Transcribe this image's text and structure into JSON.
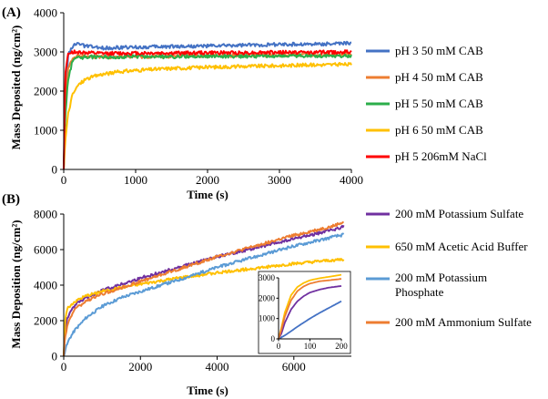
{
  "chart_data": [
    {
      "type": "line",
      "panel_label": "(A)",
      "xlabel": "Time (s)",
      "ylabel": "Mass Deposited (ng/cm²)",
      "xlim": [
        0,
        4000
      ],
      "ylim": [
        0,
        4000
      ],
      "xticks": [
        0,
        1000,
        2000,
        3000,
        4000
      ],
      "yticks": [
        0,
        1000,
        2000,
        3000,
        4000
      ],
      "xtick_labels": [
        "0",
        "1000",
        "2000",
        "3000",
        "4000"
      ],
      "ytick_labels": [
        "0",
        "1000",
        "2000",
        "3000",
        "4000"
      ],
      "series": [
        {
          "name": "pH 3 50 mM CAB",
          "color": "#4472C4",
          "x": [
            0,
            20,
            60,
            120,
            200,
            300,
            500,
            1000,
            1500,
            2000,
            2500,
            3000,
            3500,
            4000
          ],
          "y": [
            0,
            1800,
            2900,
            3150,
            3200,
            3150,
            3100,
            3120,
            3140,
            3150,
            3170,
            3190,
            3200,
            3220
          ]
        },
        {
          "name": "pH 4 50 mM CAB",
          "color": "#ED7D31",
          "x": [
            0,
            20,
            60,
            120,
            200,
            300,
            500,
            1000,
            1500,
            2000,
            2500,
            3000,
            3500,
            4000
          ],
          "y": [
            0,
            1600,
            2600,
            2850,
            2900,
            2880,
            2870,
            2880,
            2890,
            2900,
            2910,
            2920,
            2930,
            2940
          ]
        },
        {
          "name": "pH 5 50 mM CAB",
          "color": "#2BAE4A",
          "x": [
            0,
            20,
            60,
            120,
            200,
            300,
            500,
            1000,
            1500,
            2000,
            2500,
            3000,
            3500,
            4000
          ],
          "y": [
            0,
            1300,
            2300,
            2750,
            2850,
            2870,
            2870,
            2880,
            2880,
            2890,
            2890,
            2900,
            2900,
            2900
          ]
        },
        {
          "name": "pH 6 50 mM CAB",
          "color": "#FFC000",
          "x": [
            0,
            20,
            60,
            120,
            200,
            300,
            500,
            800,
            1000,
            1500,
            2000,
            2500,
            3000,
            3500,
            4000
          ],
          "y": [
            0,
            700,
            1400,
            1900,
            2150,
            2300,
            2420,
            2500,
            2530,
            2580,
            2610,
            2630,
            2650,
            2670,
            2680
          ]
        },
        {
          "name": "pH 5 206mM NaCl",
          "color": "#FF0000",
          "x": [
            0,
            20,
            60,
            120,
            200,
            300,
            500,
            1000,
            1500,
            2000,
            2500,
            3000,
            3500,
            4000
          ],
          "y": [
            0,
            2400,
            2950,
            3000,
            3000,
            2980,
            2960,
            2970,
            2970,
            2980,
            2980,
            2990,
            2990,
            3000
          ]
        }
      ]
    },
    {
      "type": "line",
      "panel_label": "(B)",
      "xlabel": "Time (s)",
      "ylabel": "Mass Deposition (ng/cm²)",
      "xlim": [
        0,
        7500
      ],
      "ylim": [
        0,
        8000
      ],
      "xticks": [
        0,
        2000,
        4000,
        6000
      ],
      "yticks": [
        0,
        2000,
        4000,
        6000,
        8000
      ],
      "xtick_labels": [
        "0",
        "2000",
        "4000",
        "6000"
      ],
      "ytick_labels": [
        "0",
        "2000",
        "4000",
        "6000",
        "8000"
      ],
      "series": [
        {
          "name": "200 mM Potassium Sulfate",
          "color": "#7030A0",
          "x": [
            0,
            30,
            100,
            300,
            600,
            1000,
            2000,
            3000,
            4000,
            5000,
            6000,
            7000,
            7300
          ],
          "y": [
            0,
            1400,
            2200,
            2900,
            3300,
            3700,
            4400,
            5000,
            5600,
            6100,
            6600,
            7100,
            7300
          ]
        },
        {
          "name": "650 mM Acetic Acid Buffer",
          "color": "#FFC000",
          "x": [
            0,
            30,
            100,
            300,
            600,
            1000,
            2000,
            3000,
            4000,
            5000,
            6000,
            7000,
            7300
          ],
          "y": [
            0,
            2000,
            2700,
            3100,
            3400,
            3650,
            4050,
            4400,
            4700,
            4950,
            5200,
            5400,
            5450
          ]
        },
        {
          "name": "200 mM Potassium Phosphate",
          "color": "#5B9BD5",
          "x": [
            0,
            50,
            150,
            300,
            600,
            1000,
            1500,
            2000,
            3000,
            4000,
            5000,
            6000,
            7000,
            7300
          ],
          "y": [
            0,
            450,
            1000,
            1500,
            2200,
            2800,
            3300,
            3650,
            4300,
            5000,
            5600,
            6200,
            6700,
            6850
          ]
        },
        {
          "name": "200 mM Ammonium Sulfate",
          "color": "#ED7D31",
          "x": [
            0,
            30,
            100,
            300,
            600,
            1000,
            2000,
            3000,
            4000,
            5000,
            6000,
            7000,
            7300
          ],
          "y": [
            0,
            1000,
            1800,
            2700,
            3100,
            3500,
            4200,
            4900,
            5600,
            6200,
            6800,
            7300,
            7550
          ]
        }
      ]
    },
    {
      "type": "line",
      "role": "inset",
      "xlim": [
        0,
        200
      ],
      "ylim": [
        0,
        3000
      ],
      "xticks": [
        0,
        100,
        200
      ],
      "yticks": [
        0,
        1000,
        2000,
        3000
      ],
      "xtick_labels": [
        "0",
        "100",
        "200"
      ],
      "ytick_labels": [
        "0",
        "1000",
        "2000",
        "3000"
      ],
      "series": [
        {
          "name": "200 mM Potassium Sulfate",
          "color": "#7030A0",
          "x": [
            0,
            10,
            20,
            40,
            60,
            80,
            100,
            130,
            160,
            200
          ],
          "y": [
            0,
            300,
            800,
            1450,
            1850,
            2100,
            2280,
            2420,
            2520,
            2600
          ]
        },
        {
          "name": "650 mM Acetic Acid Buffer",
          "color": "#FFC000",
          "x": [
            0,
            10,
            20,
            40,
            60,
            80,
            100,
            130,
            160,
            200
          ],
          "y": [
            0,
            600,
            1300,
            2150,
            2550,
            2750,
            2880,
            2980,
            3050,
            3150
          ]
        },
        {
          "name": "200 mM Potassium Phosphate",
          "color": "#4472C4",
          "x": [
            0,
            20,
            40,
            60,
            80,
            100,
            130,
            160,
            200
          ],
          "y": [
            0,
            170,
            380,
            600,
            800,
            1000,
            1270,
            1520,
            1850
          ]
        },
        {
          "name": "200 mM Ammonium Sulfate",
          "color": "#ED7D31",
          "x": [
            0,
            10,
            20,
            40,
            60,
            80,
            100,
            130,
            160,
            200
          ],
          "y": [
            0,
            500,
            1100,
            1900,
            2350,
            2580,
            2720,
            2830,
            2880,
            2950
          ]
        }
      ]
    }
  ]
}
